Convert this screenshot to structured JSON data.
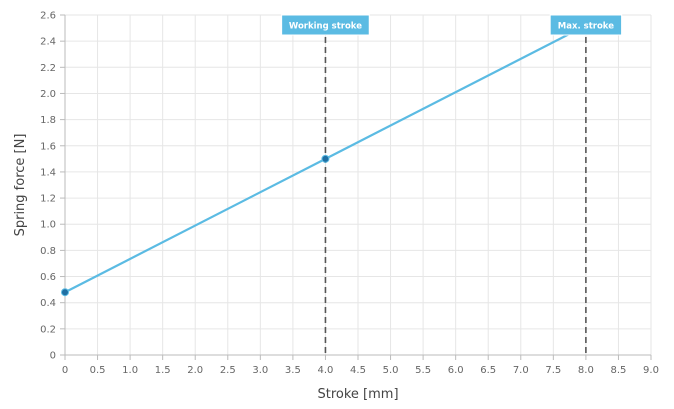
{
  "chart_data": {
    "type": "line",
    "xlabel": "Stroke [mm]",
    "ylabel": "Spring force [N]",
    "xlim": [
      0,
      9.0
    ],
    "ylim": [
      0,
      2.6
    ],
    "x_ticks": [
      "0",
      "0.5",
      "1.0",
      "1.5",
      "2.0",
      "2.5",
      "3.0",
      "3.5",
      "4.0",
      "4.5",
      "5.0",
      "5.5",
      "6.0",
      "6.5",
      "7.0",
      "7.5",
      "8.0",
      "8.5",
      "9.0"
    ],
    "y_ticks": [
      "0",
      "0.2",
      "0.4",
      "0.6",
      "0.8",
      "1.0",
      "1.2",
      "1.4",
      "1.6",
      "1.8",
      "2.0",
      "2.2",
      "2.4",
      "2.6"
    ],
    "grid": true,
    "series": [
      {
        "x": [
          0,
          4.0,
          8.0
        ],
        "y": [
          0.48,
          1.5,
          2.52
        ]
      }
    ],
    "annotations": [
      {
        "label": "Working stroke",
        "x": 4.0
      },
      {
        "label": "Max. stroke",
        "x": 8.0
      }
    ],
    "colors": {
      "line": "#5bbbe3",
      "point": "#1f6fa3",
      "annotation_bg": "#5bbbe3",
      "grid": "#e6e6e6",
      "axis": "#bbbbbb",
      "dashed": "#555555"
    }
  }
}
